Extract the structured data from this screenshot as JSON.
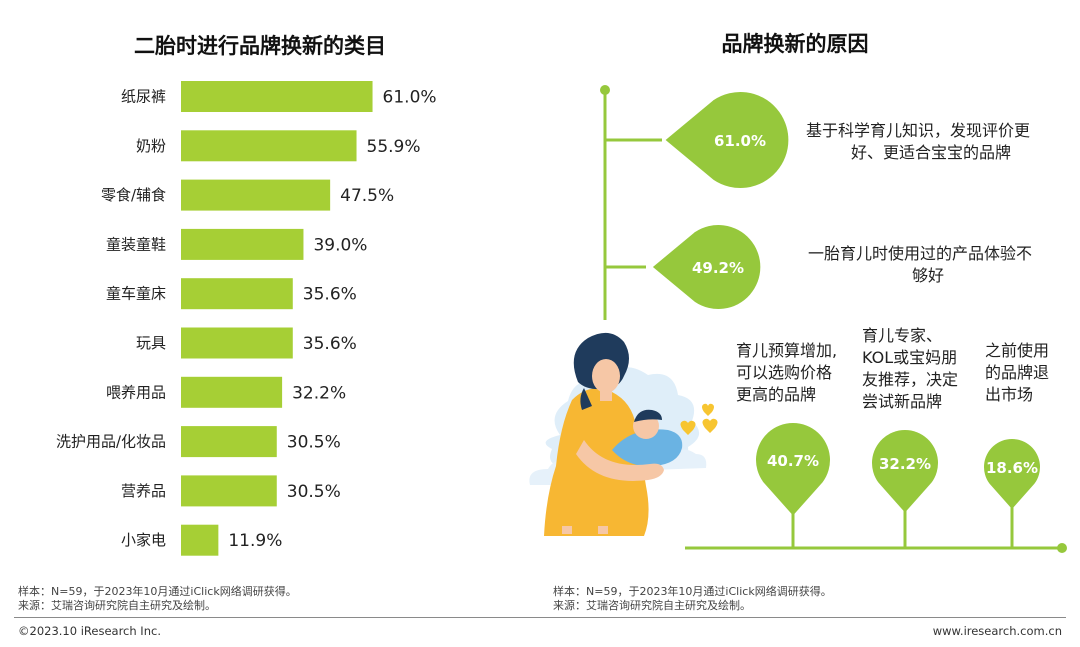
{
  "colors": {
    "green": "#96c83c",
    "bar": "#a6cf35"
  },
  "left": {
    "title": "二胎时进行品牌换新的类目",
    "note_line1": "样本：N=59，于2023年10月通过iClick网络调研获得。",
    "note_line2": "来源：艾瑞咨询研究院自主研究及绘制。"
  },
  "right": {
    "title": "品牌换新的原因",
    "note_line1": "样本：N=59，于2023年10月通过iClick网络调研获得。",
    "note_line2": "来源：艾瑞咨询研究院自主研究及绘制。",
    "reasons_top": [
      {
        "value": 61.0,
        "label": "61.0%",
        "text_line1": "基于科学育儿知识，发现评价更",
        "text_line2": "好、更适合宝宝的品牌"
      },
      {
        "value": 49.2,
        "label": "49.2%",
        "text_line1": "一胎育儿时使用过的产品体验不",
        "text_line2": "够好"
      }
    ],
    "reasons_bottom": [
      {
        "value": 40.7,
        "label": "40.7%",
        "text_lines": [
          "育儿预算增加,",
          "可以选购价格",
          "更高的品牌"
        ]
      },
      {
        "value": 32.2,
        "label": "32.2%",
        "text_lines": [
          "育儿专家、",
          "KOL或宝妈朋",
          "友推荐，决定",
          "尝试新品牌"
        ]
      },
      {
        "value": 18.6,
        "label": "18.6%",
        "text_lines": [
          "之前使用",
          "的品牌退",
          "出市场"
        ]
      }
    ]
  },
  "footer": {
    "copyright": "©2023.10 iResearch Inc.",
    "website": "www.iresearch.com.cn"
  },
  "chart_data": [
    {
      "type": "bar",
      "orientation": "horizontal",
      "title": "二胎时进行品牌换新的类目",
      "categories": [
        "纸尿裤",
        "奶粉",
        "零食/辅食",
        "童装童鞋",
        "童车童床",
        "玩具",
        "喂养用品",
        "洗护用品/化妆品",
        "营养品",
        "小家电"
      ],
      "values": [
        61.0,
        55.9,
        47.5,
        39.0,
        35.6,
        35.6,
        32.2,
        30.5,
        30.5,
        11.9
      ],
      "value_labels": [
        "61.0%",
        "55.9%",
        "47.5%",
        "39.0%",
        "35.6%",
        "35.6%",
        "32.2%",
        "30.5%",
        "30.5%",
        "11.9%"
      ],
      "unit": "%",
      "grid": false
    },
    {
      "type": "infographic",
      "title": "品牌换新的原因",
      "categories": [
        "基于科学育儿知识，发现评价更好、更适合宝宝的品牌",
        "一胎育儿时使用过的产品体验不够好",
        "育儿预算增加,可以选购价格更高的品牌",
        "育儿专家、KOL或宝妈朋友推荐，决定尝试新品牌",
        "之前使用的品牌退出市场"
      ],
      "values": [
        61.0,
        49.2,
        40.7,
        32.2,
        18.6
      ],
      "unit": "%"
    }
  ]
}
